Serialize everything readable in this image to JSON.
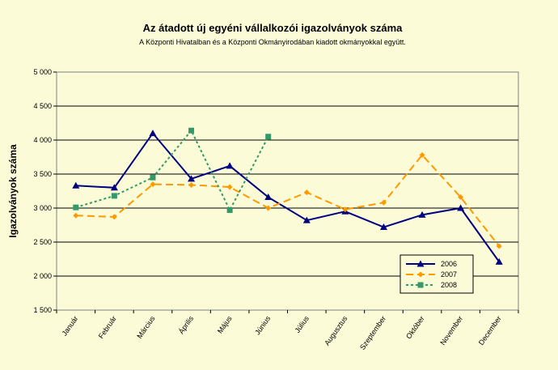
{
  "chart_data": {
    "type": "line",
    "title": "Az átadott új egyéni vállalkozói  igazolványok száma",
    "subtitle": "A Központi Hivatalban és a Központi Okmányirodában kiadott okmányokkal együtt.",
    "xlabel": "",
    "ylabel": "Igazolványok száma",
    "ylim": [
      1500,
      5000
    ],
    "yticks": [
      "1 500",
      "2 000",
      "2 500",
      "3 000",
      "3 500",
      "4 000",
      "4 500",
      "5 000"
    ],
    "ytick_values": [
      1500,
      2000,
      2500,
      3000,
      3500,
      4000,
      4500,
      5000
    ],
    "grid": true,
    "legend_position": "bottom-right",
    "categories": [
      "Január",
      "Február",
      "Március",
      "Április",
      "Május",
      "Június",
      "Július",
      "Augusztus",
      "Szeptember",
      "Október",
      "November",
      "December"
    ],
    "series": [
      {
        "name": "2006",
        "color": "#000080",
        "marker": "triangle",
        "dash": "solid",
        "values": [
          3330,
          3300,
          4100,
          3430,
          3620,
          3160,
          2820,
          2950,
          2720,
          2900,
          3000,
          2210
        ]
      },
      {
        "name": "2007",
        "color": "#ff9900",
        "marker": "diamond",
        "dash": "dashed",
        "values": [
          2890,
          2870,
          3350,
          3340,
          3310,
          3000,
          3230,
          2980,
          3080,
          3780,
          3160,
          2440
        ]
      },
      {
        "name": "2008",
        "color": "#339966",
        "marker": "square",
        "dash": "dotted",
        "values": [
          3010,
          3180,
          3450,
          4140,
          2970,
          4050,
          null,
          null,
          null,
          null,
          null,
          null
        ]
      }
    ]
  }
}
